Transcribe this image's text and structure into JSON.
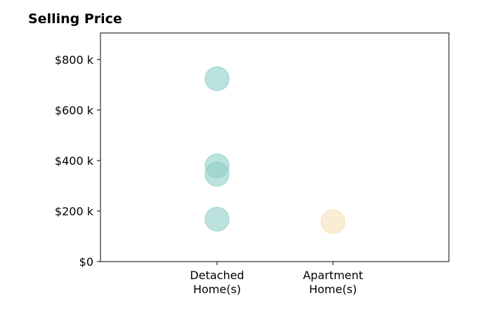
{
  "chart_data": {
    "type": "scatter",
    "title": "Selling Price",
    "xlabel": "",
    "ylabel": "",
    "categories": [
      [
        "Detached",
        "Home(s)"
      ],
      [
        "Apartment",
        "Home(s)"
      ]
    ],
    "y_ticks": [
      "$0",
      "$200 k",
      "$400 k",
      "$600 k",
      "$800 k"
    ],
    "y_tick_values": [
      0,
      200,
      400,
      600,
      800
    ],
    "ylim": [
      0,
      905
    ],
    "grid": false,
    "series": [
      {
        "category": "Detached Home(s)",
        "color": "#8fcfc8",
        "values": [
          724,
          379,
          346,
          168
        ]
      },
      {
        "category": "Apartment Home(s)",
        "color": "#f5e1b5",
        "values": [
          158
        ]
      }
    ]
  }
}
